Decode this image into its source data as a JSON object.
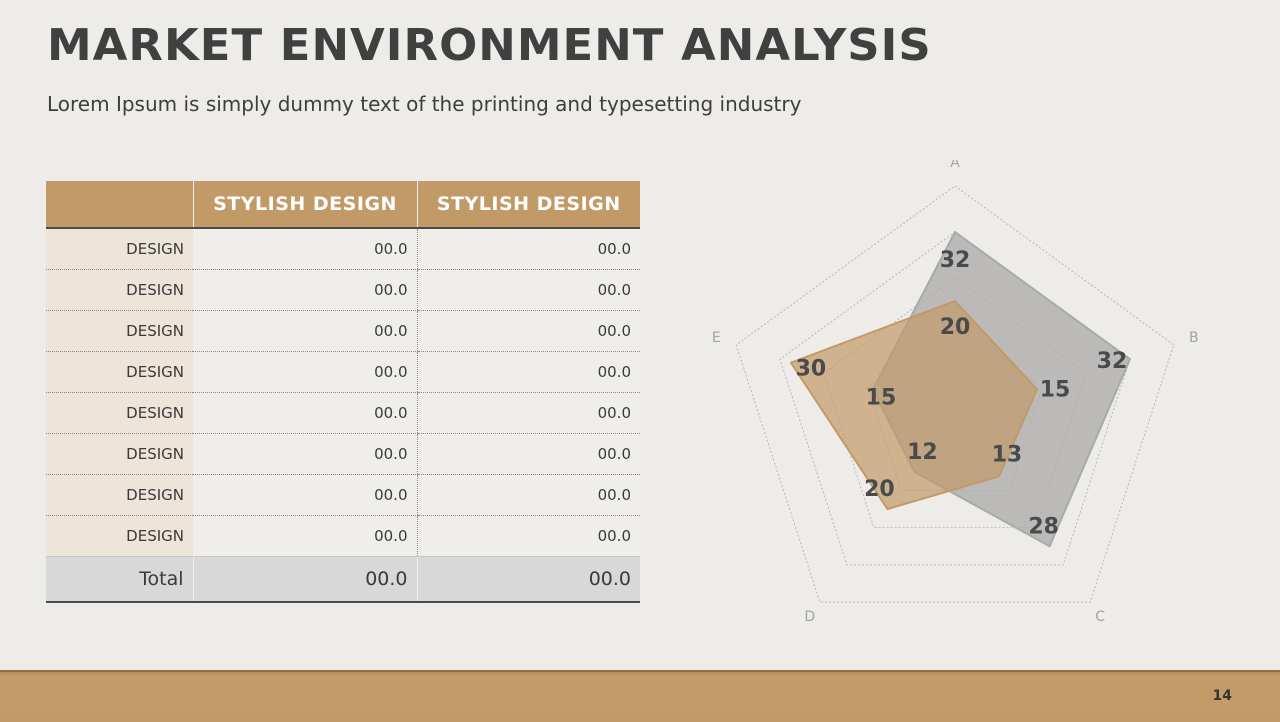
{
  "header": {
    "title": "MARKET ENVIRONMENT ANALYSIS",
    "subtitle": "Lorem Ipsum is simply dummy text of the printing and typesetting industry"
  },
  "table": {
    "columns": [
      "",
      "STYLISH DESIGN",
      "STYLISH DESIGN"
    ],
    "rows": [
      [
        "DESIGN",
        "00.0",
        "00.0"
      ],
      [
        "DESIGN",
        "00.0",
        "00.0"
      ],
      [
        "DESIGN",
        "00.0",
        "00.0"
      ],
      [
        "DESIGN",
        "00.0",
        "00.0"
      ],
      [
        "DESIGN",
        "00.0",
        "00.0"
      ],
      [
        "DESIGN",
        "00.0",
        "00.0"
      ],
      [
        "DESIGN",
        "00.0",
        "00.0"
      ],
      [
        "DESIGN",
        "00.0",
        "00.0"
      ]
    ],
    "total": [
      "Total",
      "00.0",
      "00.0"
    ]
  },
  "chart_data": {
    "type": "radar",
    "categories": [
      "A",
      "B",
      "C",
      "D",
      "E"
    ],
    "rmax": 40,
    "rings": 5,
    "series": [
      {
        "values": [
          32,
          32,
          28,
          12,
          15
        ],
        "color": "#a9a9a9"
      },
      {
        "values": [
          20,
          15,
          13,
          20,
          30
        ],
        "color": "#c29a68"
      }
    ]
  },
  "footer": {
    "page_number": "14"
  },
  "colors": {
    "accent": "#c29a68",
    "background": "#eeece8",
    "text": "#404040"
  }
}
